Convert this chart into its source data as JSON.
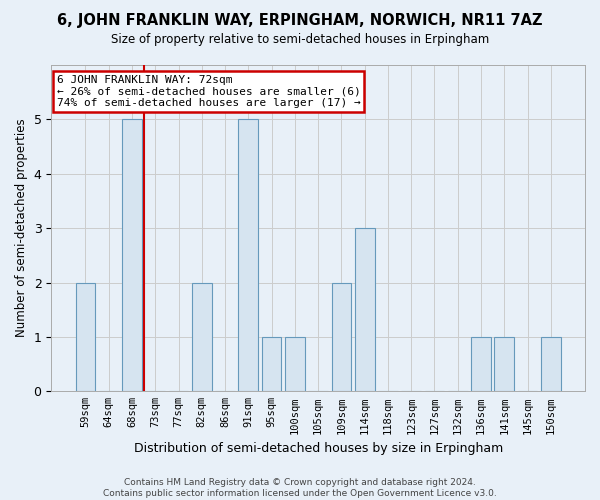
{
  "title": "6, JOHN FRANKLIN WAY, ERPINGHAM, NORWICH, NR11 7AZ",
  "subtitle": "Size of property relative to semi-detached houses in Erpingham",
  "xlabel": "Distribution of semi-detached houses by size in Erpingham",
  "ylabel": "Number of semi-detached properties",
  "categories": [
    "59sqm",
    "64sqm",
    "68sqm",
    "73sqm",
    "77sqm",
    "82sqm",
    "86sqm",
    "91sqm",
    "95sqm",
    "100sqm",
    "105sqm",
    "109sqm",
    "114sqm",
    "118sqm",
    "123sqm",
    "127sqm",
    "132sqm",
    "136sqm",
    "141sqm",
    "145sqm",
    "150sqm"
  ],
  "values": [
    2,
    0,
    5,
    0,
    0,
    2,
    0,
    5,
    1,
    1,
    0,
    2,
    3,
    0,
    0,
    0,
    0,
    1,
    1,
    0,
    1
  ],
  "highlight_index": 3,
  "highlight_color": "#cc0000",
  "bar_color": "#d6e4f0",
  "bar_edge_color": "#6699bb",
  "annotation_text": "6 JOHN FRANKLIN WAY: 72sqm\n← 26% of semi-detached houses are smaller (6)\n74% of semi-detached houses are larger (17) →",
  "annotation_box_color": "#ffffff",
  "annotation_box_edge": "#cc0000",
  "ylim": [
    0,
    6
  ],
  "yticks": [
    0,
    1,
    2,
    3,
    4,
    5
  ],
  "footer": "Contains HM Land Registry data © Crown copyright and database right 2024.\nContains public sector information licensed under the Open Government Licence v3.0.",
  "grid_color": "#cccccc",
  "background_color": "#e8f0f8",
  "plot_background": "#e8f0f8"
}
